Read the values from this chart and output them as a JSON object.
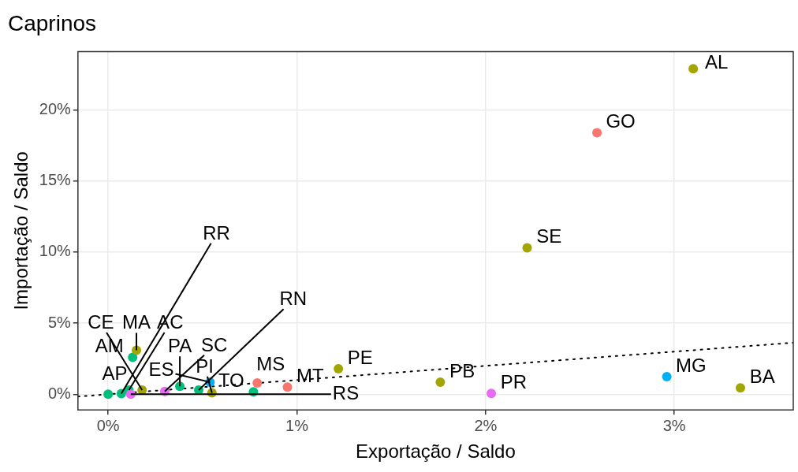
{
  "chart_data": {
    "type": "scatter",
    "title": "Caprinos",
    "xlabel": "Exportação / Saldo",
    "ylabel": "Importação / Saldo",
    "xlim": [
      -0.16,
      3.63
    ],
    "ylim": [
      -1.1,
      24.1
    ],
    "xticks": [
      {
        "value": 0,
        "label": "0%"
      },
      {
        "value": 1,
        "label": "1%"
      },
      {
        "value": 2,
        "label": "2%"
      },
      {
        "value": 3,
        "label": "3%"
      }
    ],
    "yticks": [
      {
        "value": 0,
        "label": "0%"
      },
      {
        "value": 5,
        "label": "5%"
      },
      {
        "value": 10,
        "label": "10%"
      },
      {
        "value": 15,
        "label": "15%"
      },
      {
        "value": 20,
        "label": "20%"
      }
    ],
    "grid": true,
    "series": [
      {
        "type": "scatter",
        "marker": "circle",
        "x": [
          3.1,
          2.59,
          2.22,
          1.76,
          2.03,
          2.96,
          3.35,
          1.22,
          0.79,
          0.95,
          0.77,
          0.55,
          0.54,
          0.38,
          0.0,
          0.07,
          0.13,
          0.15,
          0.11,
          0.18,
          0.12,
          0.3,
          0.48
        ],
        "values": [
          22.9,
          18.4,
          10.3,
          0.85,
          0.06,
          1.24,
          0.45,
          1.8,
          0.8,
          0.5,
          0.17,
          0.1,
          0.85,
          0.56,
          0.0,
          0.05,
          2.6,
          3.1,
          0.3,
          0.3,
          0.0,
          0.2,
          0.3
        ],
        "colors": [
          "#a3a500",
          "#f8766d",
          "#a3a500",
          "#a3a500",
          "#e76bf3",
          "#00b0f6",
          "#a3a500",
          "#a3a500",
          "#f8766d",
          "#f8766d",
          "#00bf7d",
          "#a3a500",
          "#00b0f6",
          "#00bf7d",
          "#00bf7d",
          "#00bf7d",
          "#00bf7d",
          "#a3a500",
          "#00bf7d",
          "#a3a500",
          "#e76bf3",
          "#e76bf3",
          "#00bf7d"
        ]
      },
      {
        "type": "line",
        "marker": "none",
        "line_style": "dotted",
        "color": "#000000",
        "x": [
          -0.16,
          3.63
        ],
        "values": [
          -0.16,
          3.63
        ]
      }
    ],
    "annotations": [
      {
        "text": "AL",
        "x": 3.1,
        "y": 22.9
      },
      {
        "text": "GO",
        "x": 2.59,
        "y": 18.4
      },
      {
        "text": "SE",
        "x": 2.22,
        "y": 10.3
      },
      {
        "text": "PB",
        "x": 1.76,
        "y": 0.85
      },
      {
        "text": "PR",
        "x": 2.03,
        "y": 0.06
      },
      {
        "text": "MG",
        "x": 2.96,
        "y": 1.24
      },
      {
        "text": "BA",
        "x": 3.35,
        "y": 0.45
      },
      {
        "text": "PE",
        "x": 1.22,
        "y": 1.8
      },
      {
        "text": "MS",
        "x": 0.79,
        "y": 0.8
      },
      {
        "text": "MT",
        "x": 0.95,
        "y": 0.5
      },
      {
        "text": "TO",
        "x": 0.77,
        "y": 0.17
      },
      {
        "text": "PI",
        "x": 0.55,
        "y": 0.1
      },
      {
        "text": "ES",
        "x": 0.54,
        "y": 0.85
      },
      {
        "text": "PA",
        "x": 0.38,
        "y": 0.56
      },
      {
        "text": "AP",
        "x": 0.0,
        "y": 0.0
      },
      {
        "text": "RR",
        "x": 0.07,
        "y": 0.05
      },
      {
        "text": "AM",
        "x": 0.13,
        "y": 2.6
      },
      {
        "text": "MA",
        "x": 0.15,
        "y": 3.1
      },
      {
        "text": "AC",
        "x": 0.11,
        "y": 0.3
      },
      {
        "text": "CE",
        "x": 0.18,
        "y": 0.3
      },
      {
        "text": "RS",
        "x": 0.12,
        "y": 0.0
      },
      {
        "text": "SC",
        "x": 0.3,
        "y": 0.2
      },
      {
        "text": "RN",
        "x": 0.48,
        "y": 0.3
      }
    ]
  }
}
